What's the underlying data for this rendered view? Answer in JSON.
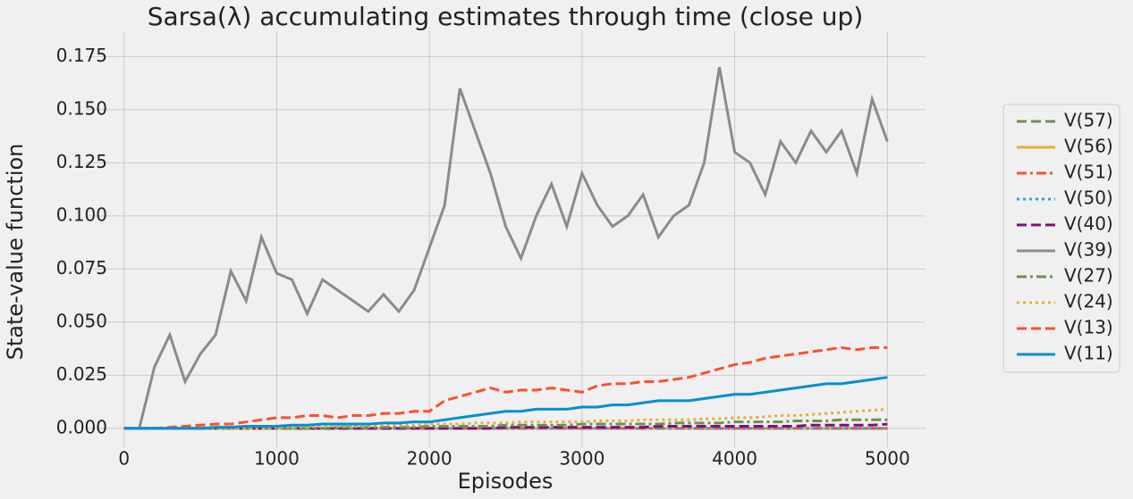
{
  "chart_data": {
    "type": "line",
    "title": "Sarsa(λ) accumulating estimates through time (close up)",
    "x_label": "Episodes",
    "y_label": "State-value function",
    "grid": true,
    "legend": "right",
    "xlim": [
      -250,
      5250
    ],
    "ylim": [
      -0.0089,
      0.1869
    ],
    "xticks": [
      0,
      1000,
      2000,
      3000,
      4000,
      5000
    ],
    "yticks": [
      {
        "value": 0,
        "label": "0.000"
      },
      {
        "value": 0.025,
        "label": "0.025"
      },
      {
        "value": 0.05,
        "label": "0.050"
      },
      {
        "value": 0.075,
        "label": "0.075"
      },
      {
        "value": 0.1,
        "label": "0.100"
      },
      {
        "value": 0.125,
        "label": "0.125"
      },
      {
        "value": 0.15,
        "label": "0.150"
      },
      {
        "value": 0.175,
        "label": "0.175"
      }
    ],
    "x": [
      0,
      100,
      200,
      300,
      400,
      500,
      600,
      700,
      800,
      900,
      1000,
      1100,
      1200,
      1300,
      1400,
      1500,
      1600,
      1700,
      1800,
      1900,
      2000,
      2100,
      2200,
      2300,
      2400,
      2500,
      2600,
      2700,
      2800,
      2900,
      3000,
      3100,
      3200,
      3300,
      3400,
      3500,
      3600,
      3700,
      3800,
      3900,
      4000,
      4100,
      4200,
      4300,
      4400,
      4500,
      4600,
      4700,
      4800,
      4900,
      5000
    ],
    "series": [
      {
        "name": "V(57)",
        "color": "#6d904f",
        "linestyle": "dashed",
        "values": [
          0,
          0,
          0,
          0,
          0,
          0,
          0,
          0,
          0,
          0,
          0,
          0,
          0,
          0,
          0,
          0,
          0,
          0,
          0,
          0,
          0,
          0,
          0,
          0,
          0,
          0,
          0,
          0,
          0,
          0,
          0,
          0,
          0,
          0,
          0,
          0,
          0,
          0,
          0,
          0,
          0,
          0,
          0,
          0,
          0,
          0,
          0,
          0,
          0,
          0,
          0
        ]
      },
      {
        "name": "V(56)",
        "color": "#e5ae38",
        "linestyle": "solid",
        "values": [
          0,
          0,
          0,
          0,
          0,
          0,
          0,
          0,
          0,
          0,
          0,
          0,
          0,
          0,
          0,
          0,
          0,
          0,
          0,
          0,
          0,
          0,
          0,
          0,
          0,
          0,
          0,
          0,
          0,
          0,
          0,
          0,
          0,
          0,
          0,
          0,
          0,
          0,
          0,
          0,
          0,
          0,
          0,
          0,
          0,
          0,
          0,
          0,
          0,
          0,
          0
        ]
      },
      {
        "name": "V(51)",
        "color": "#fc4f30",
        "linestyle": "dashdot",
        "values": [
          0,
          0,
          0,
          0,
          0,
          0,
          0,
          0,
          0,
          0,
          0,
          0,
          0,
          0,
          0,
          0,
          0,
          0,
          0,
          0,
          0,
          0,
          0,
          0,
          0,
          0,
          0,
          0,
          0,
          0,
          0,
          0,
          0,
          0,
          0,
          0,
          0,
          0,
          0,
          0,
          0,
          0,
          0,
          0,
          0,
          0,
          0,
          0,
          0,
          0,
          0
        ]
      },
      {
        "name": "V(50)",
        "color": "#30a2da",
        "linestyle": "dotted",
        "values": [
          0,
          0,
          0,
          0,
          0,
          0,
          0,
          0,
          0,
          0,
          0,
          0,
          0,
          0,
          0,
          0,
          0,
          0,
          0,
          0,
          0,
          0,
          0,
          0,
          0,
          0,
          0,
          0,
          0,
          0,
          0,
          0,
          0,
          0,
          0,
          0,
          0,
          0,
          0,
          0,
          0,
          0,
          0,
          0,
          0,
          0,
          0,
          0,
          0,
          0,
          0
        ]
      },
      {
        "name": "V(40)",
        "color": "#810f7c",
        "linestyle": "dashed",
        "values": [
          0,
          0,
          0,
          0,
          0,
          0,
          0,
          0,
          0,
          0,
          0,
          0,
          0,
          0,
          0,
          0,
          0,
          0,
          0,
          0,
          0,
          0,
          0,
          0,
          0,
          0.0005,
          0.0005,
          0.0005,
          0.0005,
          0.0005,
          0.0005,
          0.0005,
          0.0005,
          0.0005,
          0.0005,
          0.001,
          0.001,
          0.001,
          0.001,
          0.001,
          0.001,
          0.001,
          0.001,
          0.001,
          0.001,
          0.0015,
          0.0015,
          0.0015,
          0.0015,
          0.0015,
          0.002
        ]
      },
      {
        "name": "V(39)",
        "color": "#8b8b8b",
        "linestyle": "solid",
        "values": [
          0,
          0,
          0.029,
          0.044,
          0.022,
          0.035,
          0.044,
          0.074,
          0.06,
          0.09,
          0.073,
          0.07,
          0.054,
          0.07,
          0.065,
          0.06,
          0.055,
          0.063,
          0.055,
          0.065,
          0.085,
          0.105,
          0.16,
          0.14,
          0.12,
          0.095,
          0.08,
          0.1,
          0.115,
          0.095,
          0.12,
          0.105,
          0.095,
          0.1,
          0.11,
          0.09,
          0.1,
          0.105,
          0.125,
          0.17,
          0.13,
          0.125,
          0.11,
          0.135,
          0.125,
          0.14,
          0.13,
          0.14,
          0.12,
          0.155,
          0.135
        ]
      },
      {
        "name": "V(27)",
        "color": "#6d904f",
        "linestyle": "dashdot",
        "values": [
          0,
          0,
          0,
          0,
          0,
          0,
          0,
          0,
          0,
          0,
          0,
          0,
          0,
          0,
          0.0005,
          0.0005,
          0.0005,
          0.0005,
          0.0005,
          0.0005,
          0.001,
          0.001,
          0.001,
          0.001,
          0.001,
          0.0015,
          0.0015,
          0.0015,
          0.0015,
          0.0015,
          0.002,
          0.002,
          0.002,
          0.002,
          0.002,
          0.002,
          0.0025,
          0.0025,
          0.0025,
          0.0025,
          0.003,
          0.003,
          0.003,
          0.003,
          0.0035,
          0.0035,
          0.0035,
          0.004,
          0.004,
          0.004,
          0.004
        ]
      },
      {
        "name": "V(24)",
        "color": "#e5ae38",
        "linestyle": "dotted",
        "values": [
          0,
          0,
          0,
          0,
          0,
          0,
          0,
          0,
          0,
          0,
          0.0005,
          0.0005,
          0.0005,
          0.001,
          0.001,
          0.001,
          0.001,
          0.0015,
          0.0015,
          0.0015,
          0.002,
          0.002,
          0.002,
          0.0025,
          0.0025,
          0.0025,
          0.003,
          0.003,
          0.003,
          0.003,
          0.003,
          0.0035,
          0.0035,
          0.0035,
          0.004,
          0.004,
          0.004,
          0.004,
          0.0045,
          0.0045,
          0.005,
          0.005,
          0.0055,
          0.006,
          0.006,
          0.0065,
          0.007,
          0.0075,
          0.008,
          0.0085,
          0.009
        ]
      },
      {
        "name": "V(13)",
        "color": "#fc4f30",
        "linestyle": "dashed",
        "values": [
          0,
          0,
          0,
          0.0005,
          0.001,
          0.0015,
          0.002,
          0.002,
          0.003,
          0.004,
          0.005,
          0.005,
          0.006,
          0.006,
          0.005,
          0.006,
          0.006,
          0.007,
          0.007,
          0.008,
          0.008,
          0.013,
          0.015,
          0.017,
          0.019,
          0.017,
          0.018,
          0.018,
          0.019,
          0.018,
          0.017,
          0.02,
          0.021,
          0.021,
          0.022,
          0.022,
          0.023,
          0.024,
          0.026,
          0.028,
          0.03,
          0.031,
          0.033,
          0.034,
          0.035,
          0.036,
          0.037,
          0.038,
          0.037,
          0.038,
          0.038
        ]
      },
      {
        "name": "V(11)",
        "color": "#008fd5",
        "linestyle": "solid",
        "values": [
          0,
          0,
          0,
          0,
          0,
          0,
          0.0005,
          0.0005,
          0.001,
          0.001,
          0.001,
          0.0015,
          0.0015,
          0.002,
          0.002,
          0.002,
          0.002,
          0.0025,
          0.0025,
          0.003,
          0.003,
          0.004,
          0.005,
          0.006,
          0.007,
          0.008,
          0.008,
          0.009,
          0.009,
          0.009,
          0.01,
          0.01,
          0.011,
          0.011,
          0.012,
          0.013,
          0.013,
          0.013,
          0.014,
          0.015,
          0.016,
          0.016,
          0.017,
          0.018,
          0.019,
          0.02,
          0.021,
          0.021,
          0.022,
          0.023,
          0.024
        ]
      }
    ]
  }
}
